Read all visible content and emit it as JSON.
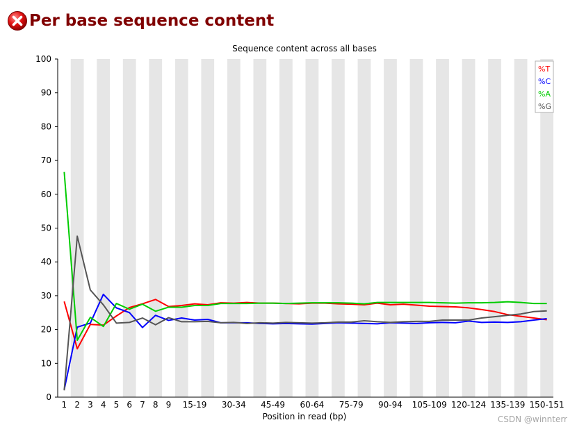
{
  "header": {
    "title": "Per base sequence content",
    "status_icon": "error-icon"
  },
  "watermark": "CSDN @winnterr",
  "colors": {
    "T": "#ff0000",
    "C": "#0000ff",
    "A": "#00cc00",
    "G": "#555555",
    "band": "#e6e6e6",
    "title": "#800000"
  },
  "chart_data": {
    "type": "line",
    "title": "Sequence content across all bases",
    "xlabel": "Position in read (bp)",
    "ylabel": "",
    "ylim": [
      0,
      100
    ],
    "yticks": [
      0,
      10,
      20,
      30,
      40,
      50,
      60,
      70,
      80,
      90,
      100
    ],
    "categories": [
      "1",
      "2",
      "3",
      "4",
      "5",
      "6",
      "7",
      "8",
      "9",
      "10-14",
      "15-19",
      "20-24",
      "25-29",
      "30-34",
      "35-39",
      "40-44",
      "45-49",
      "50-54",
      "55-59",
      "60-64",
      "65-69",
      "70-74",
      "75-79",
      "80-84",
      "85-89",
      "90-94",
      "95-99",
      "100-104",
      "105-109",
      "110-114",
      "115-119",
      "120-124",
      "125-129",
      "130-134",
      "135-139",
      "140-144",
      "145-149",
      "150-151"
    ],
    "tick_labels": [
      "1",
      "2",
      "3",
      "4",
      "5",
      "6",
      "7",
      "8",
      "9",
      "",
      "15-19",
      "",
      "",
      "30-34",
      "",
      "",
      "45-49",
      "",
      "",
      "60-64",
      "",
      "",
      "75-79",
      "",
      "",
      "90-94",
      "",
      "",
      "105-109",
      "",
      "",
      "120-124",
      "",
      "",
      "135-139",
      "",
      "",
      "150-151"
    ],
    "grid": false,
    "alternating_bands": true,
    "legend": {
      "placement": "top-right"
    },
    "series": [
      {
        "name": "%T",
        "color": "#ff0000",
        "values": [
          28.3,
          14.3,
          21.5,
          21.3,
          24.0,
          26.5,
          27.6,
          28.9,
          26.8,
          27.1,
          27.6,
          27.3,
          27.9,
          27.8,
          28.0,
          27.8,
          27.8,
          27.7,
          27.6,
          27.8,
          27.8,
          27.6,
          27.5,
          27.3,
          27.8,
          27.3,
          27.5,
          27.2,
          26.9,
          26.8,
          26.7,
          26.4,
          25.9,
          25.3,
          24.4,
          23.9,
          23.4,
          22.9
        ]
      },
      {
        "name": "%C",
        "color": "#0000ff",
        "values": [
          2.2,
          20.7,
          21.9,
          30.4,
          26.4,
          25.0,
          20.6,
          24.2,
          22.7,
          23.4,
          22.8,
          23.0,
          22.0,
          22.0,
          22.0,
          21.8,
          21.7,
          21.8,
          21.7,
          21.6,
          21.8,
          22.0,
          21.9,
          21.8,
          21.7,
          22.0,
          21.9,
          21.8,
          22.0,
          22.1,
          22.0,
          22.5,
          22.1,
          22.2,
          22.1,
          22.3,
          22.8,
          23.2
        ]
      },
      {
        "name": "%A",
        "color": "#00cc00",
        "values": [
          66.6,
          16.8,
          23.6,
          20.9,
          27.7,
          26.0,
          27.5,
          25.4,
          26.6,
          26.6,
          27.1,
          27.1,
          27.7,
          27.7,
          27.7,
          27.8,
          27.8,
          27.7,
          27.8,
          27.9,
          27.9,
          27.9,
          27.8,
          27.6,
          28.0,
          28.0,
          28.0,
          28.0,
          28.0,
          27.9,
          27.8,
          27.9,
          27.9,
          28.0,
          28.2,
          28.0,
          27.7,
          27.7
        ]
      },
      {
        "name": "%G",
        "color": "#555555",
        "values": [
          2.0,
          47.6,
          31.7,
          27.3,
          21.9,
          22.1,
          23.4,
          21.4,
          23.5,
          22.3,
          22.3,
          22.4,
          22.0,
          22.1,
          21.8,
          22.0,
          21.9,
          22.1,
          22.0,
          21.9,
          22.0,
          22.2,
          22.2,
          22.6,
          22.3,
          22.1,
          22.3,
          22.4,
          22.4,
          22.8,
          22.8,
          22.8,
          23.4,
          23.8,
          24.2,
          24.6,
          25.3,
          25.5
        ]
      }
    ]
  }
}
